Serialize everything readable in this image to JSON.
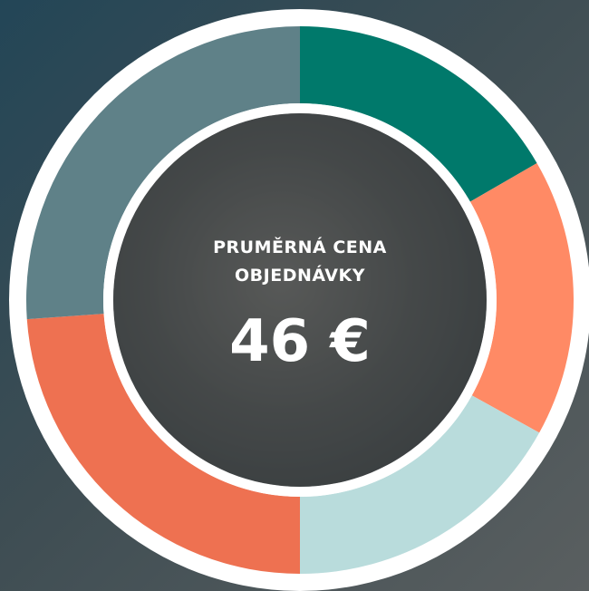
{
  "summary": {
    "label_lines": [
      "PRUMĚRNÁ CENA",
      "OBJEDNÁVKY"
    ],
    "value": "46 €"
  }
}
